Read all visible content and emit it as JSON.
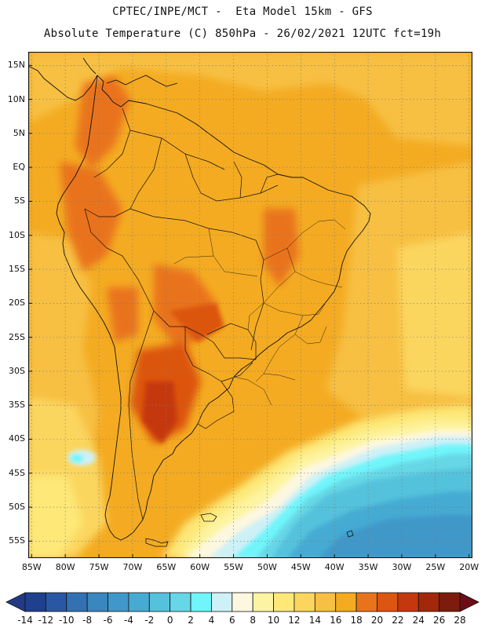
{
  "header": {
    "line1": "CPTEC/INPE/MCT -  Eta Model 15km - GFS",
    "line2": "Absolute Temperature (C) 850hPa - 26/02/2021 12UTC fct=19h"
  },
  "map": {
    "lat_labels": [
      "15N",
      "10N",
      "5N",
      "EQ",
      "5S",
      "10S",
      "15S",
      "20S",
      "25S",
      "30S",
      "35S",
      "40S",
      "45S",
      "50S",
      "55S"
    ],
    "lat_values": [
      15,
      10,
      5,
      0,
      -5,
      -10,
      -15,
      -20,
      -25,
      -30,
      -35,
      -40,
      -45,
      -50,
      -55
    ],
    "lon_labels": [
      "85W",
      "80W",
      "75W",
      "70W",
      "65W",
      "60W",
      "55W",
      "50W",
      "45W",
      "40W",
      "35W",
      "30W",
      "25W",
      "20W"
    ],
    "lon_values": [
      -85,
      -80,
      -75,
      -70,
      -65,
      -60,
      -55,
      -50,
      -45,
      -40,
      -35,
      -30,
      -25,
      -20
    ],
    "lon_range": [
      -85.5,
      -19.5
    ],
    "lat_range": [
      -57.5,
      17.0
    ],
    "grid": "dotted"
  },
  "colorbar": {
    "labels": [
      "-14",
      "-12",
      "-10",
      "-8",
      "-6",
      "-4",
      "-2",
      "0",
      "2",
      "4",
      "6",
      "8",
      "10",
      "12",
      "14",
      "16",
      "18",
      "20",
      "22",
      "24",
      "26",
      "28"
    ],
    "colors": [
      "#1f3f8f",
      "#2a57a3",
      "#3272b3",
      "#3a86bf",
      "#3f98c9",
      "#45abd3",
      "#55c2dc",
      "#66d7e6",
      "#6ff5fa",
      "#cdf1f7",
      "#fdf7e0",
      "#fdf4a3",
      "#fde878",
      "#fbd65e",
      "#f7c042",
      "#f4ab22",
      "#e9731b",
      "#dc5511",
      "#c5370c",
      "#a4260b",
      "#7d1b0c"
    ],
    "under_color": "#223a86",
    "over_color": "#6b0d16"
  }
}
